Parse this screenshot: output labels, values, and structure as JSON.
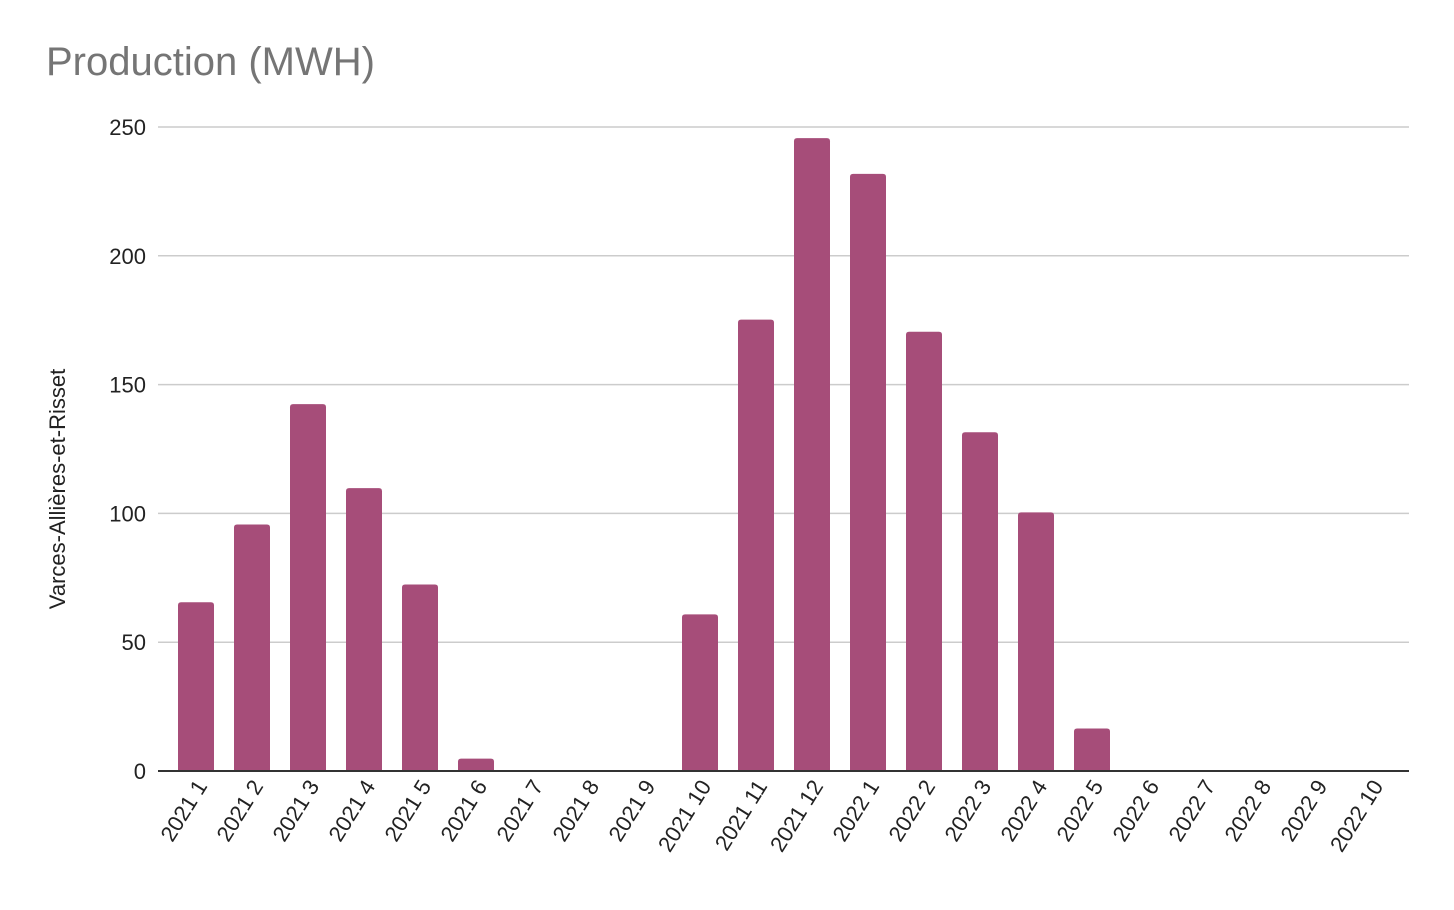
{
  "chart_data": {
    "type": "bar",
    "title": "Production (MWH)",
    "xlabel": "",
    "ylabel": "Varces-Allières-et-Risset",
    "ylim": [
      0,
      250
    ],
    "yticks": [
      0,
      50,
      100,
      150,
      200,
      250
    ],
    "grid": true,
    "legend": "none",
    "categories": [
      "2021 1",
      "2021 2",
      "2021 3",
      "2021 4",
      "2021 5",
      "2021 6",
      "2021 7",
      "2021 8",
      "2021 9",
      "2021 10",
      "2021 11",
      "2021 12",
      "2022 1",
      "2022 2",
      "2022 3",
      "2022 4",
      "2022 5",
      "2022 6",
      "2022 7",
      "2022 8",
      "2022 9",
      "2022 10"
    ],
    "series": [
      {
        "values": [
          65.5,
          95.7,
          142.4,
          109.8,
          72.4,
          4.8,
          0,
          0,
          0,
          60.8,
          175.2,
          245.7,
          231.8,
          170.5,
          131.5,
          100.4,
          16.5,
          0,
          0,
          0,
          0,
          0
        ],
        "color": "#a64d79"
      }
    ]
  }
}
